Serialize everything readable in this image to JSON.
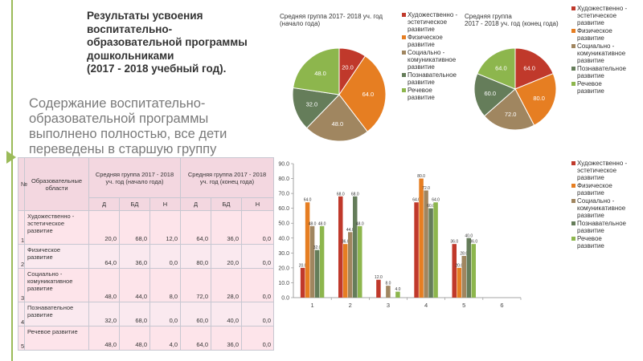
{
  "title": "Результаты усвоения\nвоспитательно-\nобразовательной программы\nдошкольниками\n(2017 - 2018 учебный год).",
  "subtitle": "Содержание воспитательно-образовательной программы выполнено полностью, все дети переведены в старшую группу",
  "colors": [
    "#c0392b",
    "#e67e22",
    "#a08660",
    "#657d5a",
    "#8db64d"
  ],
  "legend": [
    "Художественно - эстетическое развитие",
    "Физическое развитие",
    "Социально - комуникативное развитие",
    "Познавательное развитие",
    "Речевое развитие"
  ],
  "chart_data": [
    {
      "type": "pie",
      "title": "Средняя группа 2017- 2018 уч. год\n(начало года)",
      "labels": [
        "Художественно - эстетическое развитие",
        "Физическое развитие",
        "Социально - комуникативное развитие",
        "Познавательное развитие",
        "Речевое развитие"
      ],
      "values": [
        20.0,
        64.0,
        48.0,
        32.0,
        48.0
      ],
      "value_labels": [
        "20.0",
        "64.0",
        "48.0",
        "32.0",
        "48.0"
      ]
    },
    {
      "type": "pie",
      "title": "Средняя группа\n2017 - 2018 уч. год (конец года)",
      "labels": [
        "Художественно - эстетическое развитие",
        "Физическое развитие",
        "Социально - комуникативное развитие",
        "Познавательное развитие",
        "Речевое развитие"
      ],
      "values": [
        64.0,
        80.0,
        72.0,
        60.0,
        64.0
      ],
      "value_labels": [
        "64.0",
        "80.0",
        "72.0",
        "60.0",
        "64.0"
      ]
    },
    {
      "type": "bar",
      "categories": [
        "1",
        "2",
        "3",
        "4",
        "5",
        "6"
      ],
      "yticks": [
        "0.0",
        "10.0",
        "20.0",
        "30.0",
        "40.0",
        "50.0",
        "60.0",
        "70.0",
        "80.0",
        "90.0"
      ],
      "ylim": [
        0,
        90
      ],
      "series": [
        {
          "name": "Художественно - эстетическое развитие",
          "values": [
            20.0,
            68.0,
            12.0,
            64.0,
            36.0,
            null
          ],
          "labels": [
            "20.0",
            "68.0",
            "12.0",
            "64.0",
            "36.0",
            ""
          ]
        },
        {
          "name": "Физическое развитие",
          "values": [
            64.0,
            36.0,
            0,
            80.0,
            20.0,
            null
          ],
          "labels": [
            "64.0",
            "36.0",
            "",
            "80.0",
            "20.0",
            ""
          ]
        },
        {
          "name": "Социально - комуникативное развитие",
          "values": [
            48.0,
            44.0,
            8.0,
            72.0,
            28.0,
            null
          ],
          "labels": [
            "48.0",
            "44.0",
            "8.0",
            "72.0",
            "28.0",
            ""
          ]
        },
        {
          "name": "Познавательное развитие",
          "values": [
            32.0,
            68.0,
            0,
            60.0,
            40.0,
            null
          ],
          "labels": [
            "32.0",
            "68.0",
            "",
            "60.0",
            "40.0",
            ""
          ]
        },
        {
          "name": "Речевое развитие",
          "values": [
            48.0,
            48.0,
            4.0,
            64.0,
            36.0,
            null
          ],
          "labels": [
            "48.0",
            "48.0",
            "4.0",
            "64.0",
            "36.0",
            ""
          ]
        }
      ]
    }
  ],
  "table": {
    "h_num": "№",
    "h_area": "Образовательные области",
    "h_start": "Средняя группа 2017 - 2018 уч. год (начало года)",
    "h_end": "Средняя группа 2017 - 2018 уч. год (конец года)",
    "sub": [
      "Д",
      "БД",
      "Н",
      "Д",
      "БД",
      "Н"
    ],
    "rows": [
      {
        "num": "1",
        "area": "Художественно - эстетическое развитие",
        "cells": [
          "20,0",
          "68,0",
          "12,0",
          "64,0",
          "36,0",
          "0,0"
        ]
      },
      {
        "num": "2",
        "area": "Физическое развитие",
        "cells": [
          "64,0",
          "36,0",
          "0,0",
          "80,0",
          "20,0",
          "0,0"
        ]
      },
      {
        "num": "3",
        "area": "Социально - комуникативное развитие",
        "cells": [
          "48,0",
          "44,0",
          "8,0",
          "72,0",
          "28,0",
          "0,0"
        ]
      },
      {
        "num": "4",
        "area": "Познавательное развитие",
        "cells": [
          "32,0",
          "68,0",
          "0,0",
          "60,0",
          "40,0",
          "0,0"
        ]
      },
      {
        "num": "5",
        "area": "Речевое развитие",
        "cells": [
          "48,0",
          "48,0",
          "4,0",
          "64,0",
          "36,0",
          "0,0"
        ]
      }
    ]
  }
}
